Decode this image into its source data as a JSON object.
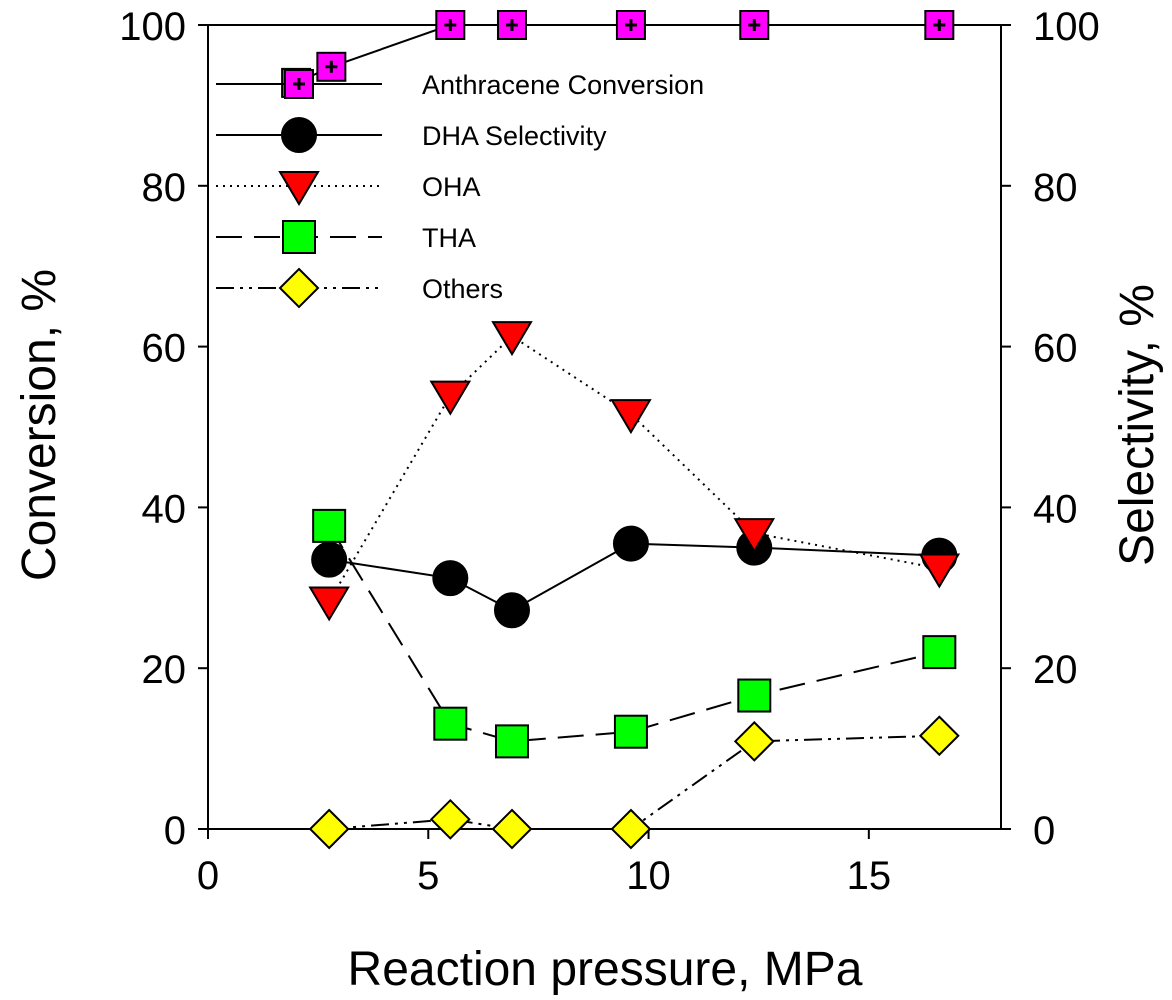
{
  "chart_data": {
    "type": "line",
    "title": "",
    "xlabel": "Reaction pressure, MPa",
    "ylabel_left": "Conversion, %",
    "ylabel_right": "Selectivity, %",
    "xlim": [
      0,
      18
    ],
    "ylim_left": [
      0,
      100
    ],
    "ylim_right": [
      0,
      100
    ],
    "x_ticks": [
      0,
      5,
      10,
      15
    ],
    "y_ticks_left": [
      0,
      20,
      40,
      60,
      80,
      100
    ],
    "y_ticks_right": [
      0,
      20,
      40,
      60,
      80,
      100
    ],
    "grid": false,
    "legend_position": "upper-left",
    "series": [
      {
        "name": "Anthracene Conversion",
        "marker": "square-plus",
        "color": "#ff00ff",
        "line": "solid",
        "axis": "left",
        "x": [
          2.0,
          2.8,
          5.5,
          6.9,
          9.6,
          12.4,
          16.6
        ],
        "values": [
          92.8,
          94.8,
          100,
          100,
          100,
          100,
          100
        ]
      },
      {
        "name": "DHA Selectivity",
        "marker": "circle",
        "color": "#000000",
        "line": "solid",
        "axis": "right",
        "x": [
          2.75,
          5.5,
          6.9,
          9.6,
          12.4,
          16.6
        ],
        "values": [
          33.5,
          31.2,
          27.2,
          35.5,
          35.0,
          34.0
        ]
      },
      {
        "name": "OHA",
        "marker": "triangle-down",
        "color": "#ff0000",
        "line": "dotted",
        "axis": "right",
        "x": [
          2.75,
          5.5,
          6.9,
          9.6,
          12.4,
          16.6
        ],
        "values": [
          28.3,
          53.9,
          61.3,
          51.6,
          36.8,
          32.4
        ]
      },
      {
        "name": "THA",
        "marker": "square",
        "color": "#00ff00",
        "line": "dashed",
        "axis": "right",
        "x": [
          2.75,
          5.5,
          6.9,
          9.6,
          12.4,
          16.6
        ],
        "values": [
          37.7,
          13.1,
          10.9,
          12.1,
          16.6,
          22.0
        ]
      },
      {
        "name": "Others",
        "marker": "diamond",
        "color": "#ffff00",
        "line": "dash-dot-dot",
        "axis": "right",
        "x": [
          2.75,
          5.5,
          6.9,
          9.6,
          12.4,
          16.6
        ],
        "values": [
          0,
          1.2,
          0,
          0,
          10.9,
          11.6
        ]
      }
    ]
  }
}
